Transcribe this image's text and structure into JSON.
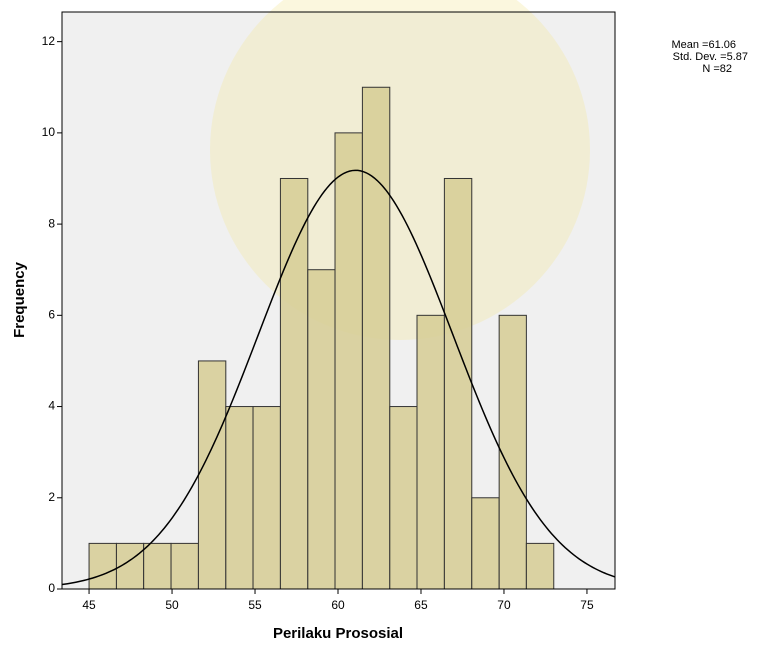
{
  "chart_data": {
    "type": "histogram",
    "x_label": "Perilaku Prososial",
    "y_label": "Frequency",
    "bins": [
      45,
      46.65,
      48.29,
      49.94,
      51.59,
      53.24,
      54.88,
      56.53,
      58.18,
      59.82,
      61.47,
      63.12,
      64.76,
      66.41,
      68.06,
      69.71,
      71.35,
      73.0
    ],
    "values": [
      1,
      1,
      1,
      1,
      5,
      4,
      4,
      9,
      7,
      10,
      11,
      4,
      6,
      9,
      2,
      6,
      1
    ],
    "color": "#d6cd94",
    "xlim": [
      43.37,
      76.69
    ],
    "xticks": [
      45,
      50,
      55,
      60,
      65,
      70,
      75
    ],
    "ylim": [
      0,
      12.65
    ],
    "yticks": [
      0,
      2,
      4,
      6,
      8,
      10,
      12
    ],
    "stats": [
      {
        "value": 61.06,
        "label": "Mean =61.06"
      },
      {
        "value": 5.87,
        "label": "Std. Dev. =5.87"
      },
      {
        "value": 82,
        "label": "N =82"
      }
    ],
    "normal_curve": true
  }
}
